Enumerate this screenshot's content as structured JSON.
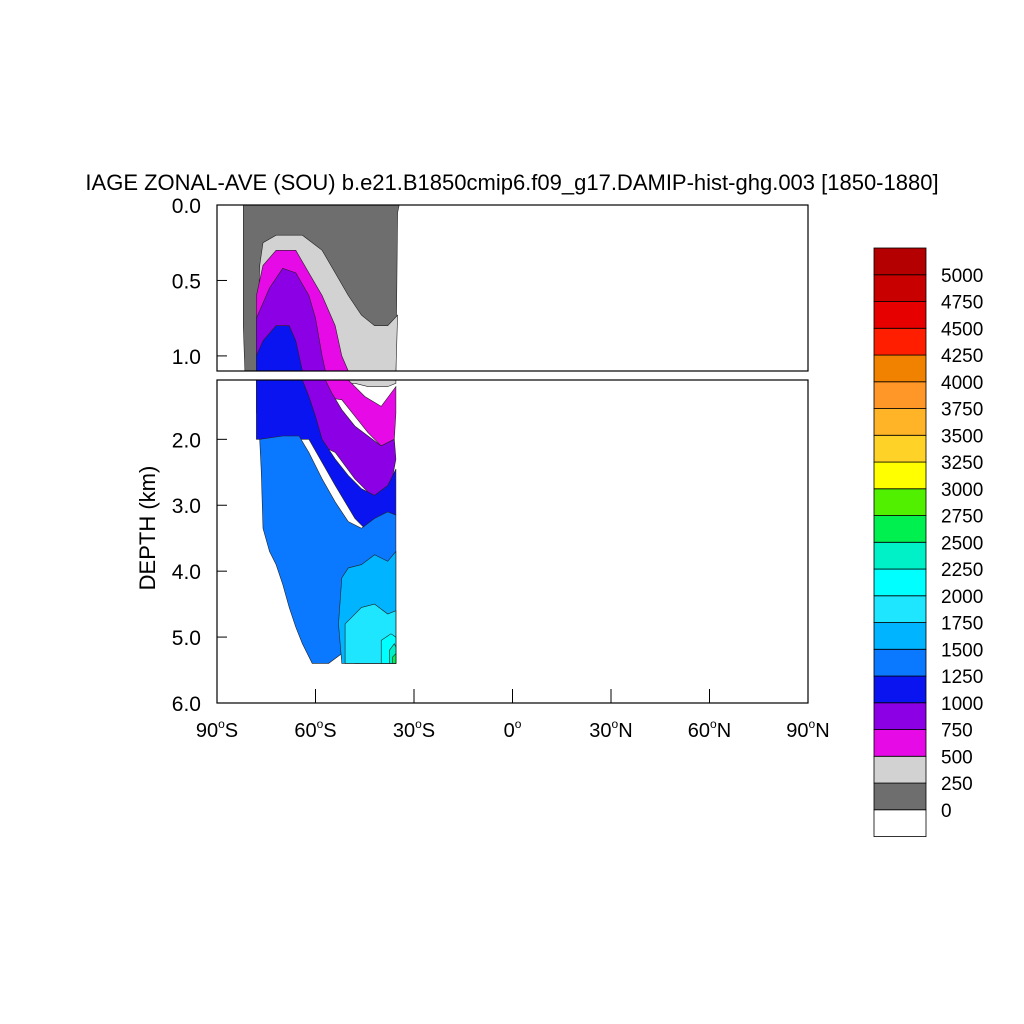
{
  "chart_data": {
    "type": "heatmap",
    "title": "IAGE ZONAL-AVE (SOU) b.e21.B1850cmip6.f09_g17.DAMIP-hist-ghg.003 [1850-1880]",
    "ylabel": "DEPTH (km)",
    "xlabel": "",
    "x_range": [
      -90,
      90
    ],
    "x_ticks": [
      {
        "value": -90,
        "deg": "90",
        "hemi": "S"
      },
      {
        "value": -60,
        "deg": "60",
        "hemi": "S"
      },
      {
        "value": -30,
        "deg": "30",
        "hemi": "S"
      },
      {
        "value": 0,
        "deg": "0",
        "hemi": ""
      },
      {
        "value": 30,
        "deg": "30",
        "hemi": "N"
      },
      {
        "value": 60,
        "deg": "60",
        "hemi": "N"
      },
      {
        "value": 90,
        "deg": "90",
        "hemi": "N"
      }
    ],
    "upper_panel": {
      "y_range": [
        0,
        1.1
      ],
      "y_ticks": [
        "0.0",
        "0.5",
        "1.0"
      ],
      "y_values": [
        0,
        0.5,
        1.0
      ]
    },
    "lower_panel": {
      "y_range": [
        1.1,
        6.0
      ],
      "y_ticks": [
        "2.0",
        "3.0",
        "4.0",
        "5.0",
        "6.0"
      ],
      "y_values": [
        2.0,
        3.0,
        4.0,
        5.0,
        6.0
      ]
    },
    "colorbar": {
      "levels": [
        "0",
        "250",
        "500",
        "750",
        "1000",
        "1250",
        "1500",
        "1750",
        "2000",
        "2250",
        "2500",
        "2750",
        "3000",
        "3250",
        "3500",
        "3750",
        "4000",
        "4250",
        "4500",
        "4750",
        "5000"
      ],
      "colors": [
        "#ffffff",
        "#6e6e6e",
        "#d2d2d2",
        "#e60ae6",
        "#8c00e6",
        "#0a14f0",
        "#0a78ff",
        "#00b4ff",
        "#1ee6ff",
        "#00ffff",
        "#00f0c8",
        "#00f050",
        "#50f000",
        "#ffff00",
        "#ffd228",
        "#ffb428",
        "#ff9628",
        "#f08200",
        "#ff1e00",
        "#e60000",
        "#c80000",
        "#b40000"
      ]
    },
    "contour_layers": [
      {
        "level": "0-250",
        "color": "#6e6e6e",
        "upper": [
          [
            -82,
            0
          ],
          [
            -34.5,
            0
          ],
          [
            -35,
            0.05
          ],
          [
            -35.5,
            1.1
          ],
          [
            -81.5,
            1.1
          ],
          [
            -82,
            0.8
          ]
        ],
        "lower": []
      },
      {
        "level": "250-500",
        "color": "#d2d2d2",
        "upper": [
          [
            -77,
            0.4
          ],
          [
            -76,
            0.25
          ],
          [
            -72,
            0.2
          ],
          [
            -64,
            0.2
          ],
          [
            -58,
            0.3
          ],
          [
            -54,
            0.45
          ],
          [
            -50,
            0.6
          ],
          [
            -46,
            0.73
          ],
          [
            -42,
            0.8
          ],
          [
            -38,
            0.8
          ],
          [
            -35,
            0.73
          ],
          [
            -35.5,
            1.1
          ],
          [
            -78,
            1.1
          ]
        ],
        "lower": [
          [
            -78,
            1.1
          ],
          [
            -35.5,
            1.1
          ],
          [
            -35.5,
            1.15
          ],
          [
            -38,
            1.2
          ],
          [
            -44,
            1.2
          ],
          [
            -48,
            1.15
          ],
          [
            -78,
            1.15
          ]
        ]
      },
      {
        "level": "500-750",
        "color": "#e60ae6",
        "upper": [
          [
            -78,
            0.6
          ],
          [
            -76,
            0.4
          ],
          [
            -72,
            0.3
          ],
          [
            -66,
            0.3
          ],
          [
            -62,
            0.45
          ],
          [
            -58,
            0.6
          ],
          [
            -54,
            0.8
          ],
          [
            -52,
            1.0
          ],
          [
            -50,
            1.1
          ],
          [
            -78,
            1.1
          ]
        ],
        "lower": [
          [
            -78,
            1.1
          ],
          [
            -50,
            1.1
          ],
          [
            -48,
            1.2
          ],
          [
            -45,
            1.35
          ],
          [
            -40,
            1.5
          ],
          [
            -35.5,
            1.2
          ],
          [
            -35.5,
            1.6
          ],
          [
            -36,
            2.0
          ],
          [
            -40,
            2.1
          ],
          [
            -44,
            1.9
          ],
          [
            -52,
            1.4
          ],
          [
            -78,
            1.2
          ]
        ]
      },
      {
        "level": "750-1000",
        "color": "#8c00e6",
        "upper": [
          [
            -78,
            0.75
          ],
          [
            -74,
            0.55
          ],
          [
            -70,
            0.42
          ],
          [
            -66,
            0.45
          ],
          [
            -62,
            0.6
          ],
          [
            -60,
            0.75
          ],
          [
            -58,
            1.0
          ],
          [
            -57,
            1.1
          ],
          [
            -78,
            1.1
          ]
        ],
        "lower": [
          [
            -78,
            1.1
          ],
          [
            -57,
            1.1
          ],
          [
            -55,
            1.3
          ],
          [
            -52,
            1.55
          ],
          [
            -48,
            1.8
          ],
          [
            -44,
            1.95
          ],
          [
            -40,
            2.1
          ],
          [
            -36,
            2.0
          ],
          [
            -35.5,
            2.3
          ],
          [
            -37,
            2.7
          ],
          [
            -42,
            2.9
          ],
          [
            -48,
            2.6
          ],
          [
            -54,
            2.2
          ],
          [
            -78,
            1.6
          ]
        ]
      },
      {
        "level": "1000-1250",
        "color": "#0a14f0",
        "upper": [
          [
            -78,
            1.0
          ],
          [
            -76,
            0.9
          ],
          [
            -72,
            0.8
          ],
          [
            -68,
            0.8
          ],
          [
            -66,
            0.9
          ],
          [
            -64,
            1.1
          ],
          [
            -78,
            1.1
          ]
        ],
        "lower": [
          [
            -78,
            1.1
          ],
          [
            -64,
            1.1
          ],
          [
            -62,
            1.35
          ],
          [
            -60,
            1.65
          ],
          [
            -58,
            2.0
          ],
          [
            -54,
            2.3
          ],
          [
            -50,
            2.55
          ],
          [
            -46,
            2.75
          ],
          [
            -42,
            2.85
          ],
          [
            -38,
            2.7
          ],
          [
            -35.5,
            2.45
          ],
          [
            -35.5,
            3.15
          ],
          [
            -40,
            3.3
          ],
          [
            -44,
            3.4
          ],
          [
            -48,
            3.2
          ],
          [
            -54,
            2.7
          ],
          [
            -62,
            2.0
          ],
          [
            -78,
            2.0
          ]
        ]
      },
      {
        "level": "1250-1500",
        "color": "#0a78ff",
        "upper": [],
        "lower": [
          [
            -77,
            2.0
          ],
          [
            -70,
            1.95
          ],
          [
            -65,
            1.95
          ],
          [
            -62,
            2.2
          ],
          [
            -58,
            2.6
          ],
          [
            -54,
            2.95
          ],
          [
            -50,
            3.25
          ],
          [
            -46,
            3.35
          ],
          [
            -42,
            3.2
          ],
          [
            -38,
            3.1
          ],
          [
            -35.5,
            3.15
          ],
          [
            -35.5,
            5.4
          ],
          [
            -48,
            5.4
          ],
          [
            -52,
            5.25
          ],
          [
            -56,
            5.4
          ],
          [
            -61,
            5.4
          ],
          [
            -64,
            5.1
          ],
          [
            -66,
            4.85
          ],
          [
            -68,
            4.55
          ],
          [
            -70,
            4.2
          ],
          [
            -72,
            3.9
          ],
          [
            -74,
            3.7
          ],
          [
            -76,
            3.35
          ],
          [
            -76.5,
            2.5
          ]
        ]
      },
      {
        "level": "1500-1750",
        "color": "#00b4ff",
        "upper": [],
        "lower": [
          [
            -52,
            4.1
          ],
          [
            -50,
            3.95
          ],
          [
            -46,
            3.9
          ],
          [
            -42,
            3.75
          ],
          [
            -38,
            3.85
          ],
          [
            -35.5,
            3.7
          ],
          [
            -35.5,
            5.4
          ],
          [
            -52,
            5.4
          ],
          [
            -53,
            4.8
          ]
        ]
      },
      {
        "level": "1750-2000",
        "color": "#1ee6ff",
        "upper": [],
        "lower": [
          [
            -51,
            4.8
          ],
          [
            -46,
            4.55
          ],
          [
            -42,
            4.5
          ],
          [
            -38,
            4.65
          ],
          [
            -35.5,
            4.6
          ],
          [
            -35.5,
            5.4
          ],
          [
            -51,
            5.4
          ]
        ]
      },
      {
        "level": "2000-2250",
        "color": "#00ffff",
        "upper": [],
        "lower": [
          [
            -40,
            5.05
          ],
          [
            -37,
            4.95
          ],
          [
            -35.5,
            5.0
          ],
          [
            -35.5,
            5.4
          ],
          [
            -40,
            5.4
          ]
        ]
      },
      {
        "level": "2250-2500",
        "color": "#00f0c8",
        "upper": [],
        "lower": [
          [
            -37.5,
            5.2
          ],
          [
            -36,
            5.1
          ],
          [
            -35.5,
            5.15
          ],
          [
            -35.5,
            5.4
          ],
          [
            -37.5,
            5.4
          ]
        ]
      },
      {
        "level": "2500-2750",
        "color": "#00f050",
        "upper": [],
        "lower": [
          [
            -36.5,
            5.3
          ],
          [
            -35.5,
            5.25
          ],
          [
            -35.5,
            5.4
          ],
          [
            -36.5,
            5.4
          ]
        ]
      }
    ]
  }
}
